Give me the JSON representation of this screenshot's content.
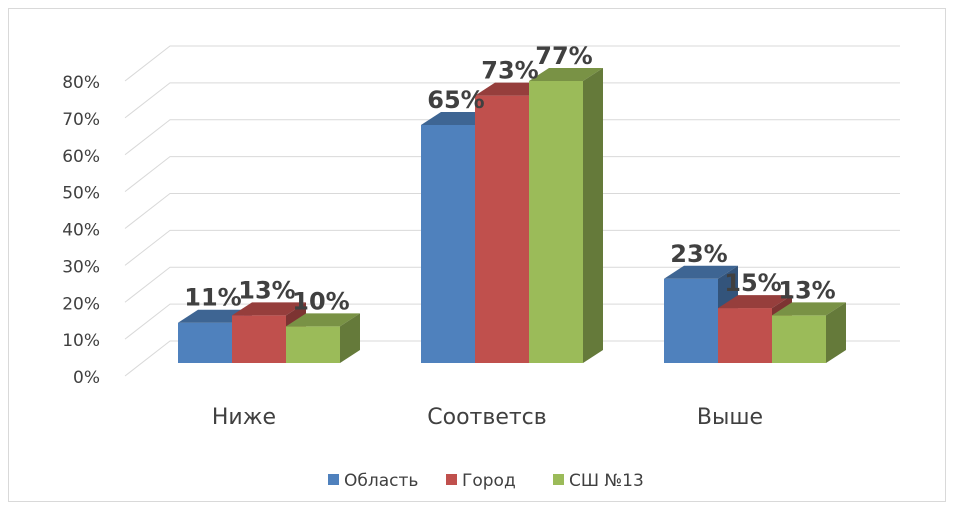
{
  "chart_data": {
    "type": "bar3d",
    "categories": [
      "Ниже",
      "Соответсв",
      "Выше"
    ],
    "series": [
      {
        "name": "Область",
        "color": "#4f81bd",
        "values": [
          11,
          65,
          23
        ],
        "value_labels": [
          "11%",
          "65%",
          "23%"
        ]
      },
      {
        "name": "Город",
        "color": "#c0504d",
        "values": [
          13,
          73,
          15
        ],
        "value_labels": [
          "13%",
          "73%",
          "15%"
        ]
      },
      {
        "name": "СШ №13",
        "color": "#9bbb59",
        "values": [
          10,
          77,
          13
        ],
        "value_labels": [
          "10%",
          "77%",
          "13%"
        ]
      }
    ],
    "ylim": [
      0,
      80
    ],
    "yticks": [
      {
        "value": 0,
        "label": "0%"
      },
      {
        "value": 10,
        "label": "10%"
      },
      {
        "value": 20,
        "label": "20%"
      },
      {
        "value": 30,
        "label": "30%"
      },
      {
        "value": 40,
        "label": "40%"
      },
      {
        "value": 50,
        "label": "50%"
      },
      {
        "value": 60,
        "label": "60%"
      },
      {
        "value": 70,
        "label": "70%"
      },
      {
        "value": 80,
        "label": "80%"
      }
    ],
    "grid": true,
    "legend": "bottom"
  }
}
